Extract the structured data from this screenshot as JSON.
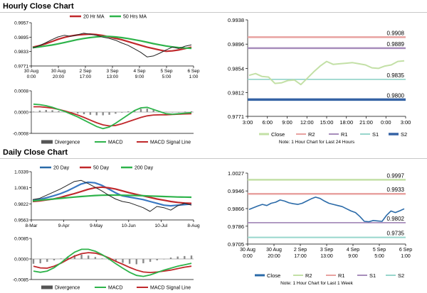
{
  "hourly_section_title": "Hourly Close Chart",
  "daily_section_title": "Daily Close Chart",
  "colors": {
    "ma20": "#c0282b",
    "ma50": "#2db34a",
    "price": "#222222",
    "macd": "#2db34a",
    "signal": "#c0282b",
    "hist": "#8c8c8c",
    "close_light": "#c3e0a6",
    "close_dark": "#2a6aa8",
    "r2": "#e8a2a0",
    "r1": "#a78dbb",
    "s1": "#98d6cc",
    "s2": "#3563a5",
    "r2_daily": "#c3e0a6"
  },
  "chart_data": [
    {
      "id": "hourly-price",
      "type": "line",
      "legend": [
        "20 Hr MA",
        "50 Hrs MA"
      ],
      "legend_placement": "top",
      "y_ticks": [
        "0.9957",
        "0.9895",
        "0.9833",
        "0.9771"
      ],
      "ylim": [
        0.9771,
        0.9957
      ],
      "x_ticks": [
        {
          "l1": "30 Aug",
          "l2": "0:00"
        },
        {
          "l1": "30 Aug",
          "l2": "20:00"
        },
        {
          "l1": "2 Sep",
          "l2": "17:00"
        },
        {
          "l1": "3 Sep",
          "l2": "13:00"
        },
        {
          "l1": "4 Sep",
          "l2": "9:00"
        },
        {
          "l1": "5 Sep",
          "l2": "5:00"
        },
        {
          "l1": "6 Sep",
          "l2": "1:00"
        }
      ],
      "series": [
        {
          "name": "20 Hr MA",
          "values": [
            0.9852,
            0.9858,
            0.9866,
            0.9876,
            0.9886,
            0.9894,
            0.99,
            0.9904,
            0.9906,
            0.9908,
            0.9906,
            0.9902,
            0.9896,
            0.989,
            0.9884,
            0.9876,
            0.9868,
            0.986,
            0.9852,
            0.9846,
            0.984,
            0.9834,
            0.9836,
            0.984,
            0.9846,
            0.9852
          ]
        },
        {
          "name": "50 Hrs MA",
          "values": [
            0.985,
            0.9853,
            0.9857,
            0.9861,
            0.9866,
            0.9872,
            0.9878,
            0.9884,
            0.9889,
            0.9893,
            0.9896,
            0.9898,
            0.9898,
            0.9896,
            0.9893,
            0.9889,
            0.9884,
            0.9879,
            0.9873,
            0.9867,
            0.9862,
            0.9857,
            0.9853,
            0.985,
            0.9848,
            0.9847
          ]
        },
        {
          "name": "Close",
          "values": [
            0.9848,
            0.9858,
            0.987,
            0.9884,
            0.9896,
            0.9903,
            0.9898,
            0.9905,
            0.9912,
            0.9908,
            0.9903,
            0.9895,
            0.989,
            0.9882,
            0.987,
            0.986,
            0.9845,
            0.983,
            0.981,
            0.9814,
            0.9826,
            0.984,
            0.9852,
            0.9846,
            0.9856,
            0.9862
          ]
        }
      ]
    },
    {
      "id": "hourly-macd",
      "type": "line",
      "y_ticks": [
        "0.0008",
        "0.0000",
        "-0.0008"
      ],
      "ylim": [
        -0.0008,
        0.0008
      ],
      "legend": [
        "Divergence",
        "MACD",
        "MACD Signal Line"
      ],
      "series": [
        {
          "name": "Divergence",
          "values": [
            2e-05,
            6e-05,
            8e-05,
            7e-05,
            4e-05,
            1e-05,
            -2e-05,
            -5e-05,
            -8e-05,
            -0.0001,
            -0.00012,
            -0.00012,
            -0.0001,
            -6e-05,
            -2e-05,
            3e-05,
            8e-05,
            0.00012,
            0.00013,
            8e-05,
            4e-05,
            1e-05,
            -1e-05,
            0.0,
            2e-05,
            3e-05
          ]
        },
        {
          "name": "MACD",
          "values": [
            0.0003,
            0.00028,
            0.00024,
            0.00018,
            0.0001,
            2e-05,
            -8e-05,
            -0.00018,
            -0.0003,
            -0.00042,
            -0.00054,
            -0.00062,
            -0.00056,
            -0.00042,
            -0.00026,
            -0.0001,
            6e-05,
            0.00016,
            0.00018,
            0.0001,
            2e-05,
            -6e-05,
            -8e-05,
            -6e-05,
            -4e-05,
            -2e-05
          ]
        },
        {
          "name": "MACD Signal Line",
          "values": [
            0.0002,
            0.0002,
            0.00018,
            0.00015,
            0.0001,
            4e-05,
            -3e-05,
            -0.00011,
            -0.0002,
            -0.0003,
            -0.0004,
            -0.00048,
            -0.00052,
            -0.0005,
            -0.00044,
            -0.00036,
            -0.00028,
            -0.0002,
            -0.00014,
            -0.00011,
            -0.0001,
            -0.0001,
            -9e-05,
            -8e-05,
            -7e-05,
            -6e-05
          ]
        }
      ]
    },
    {
      "id": "hourly-levels",
      "type": "line",
      "y_ticks": [
        "0.9938",
        "0.9896",
        "0.9854",
        "0.9812",
        "0.9771"
      ],
      "ylim": [
        0.9771,
        0.9938
      ],
      "x_ticks": [
        "3:00",
        "6:00",
        "9:00",
        "12:00",
        "15:00",
        "18:00",
        "21:00",
        "0:00",
        "3:00"
      ],
      "levels": [
        {
          "name": "R2",
          "value": 0.9908,
          "label": "0.9908"
        },
        {
          "name": "R1",
          "value": 0.9889,
          "label": "0.9889"
        },
        {
          "name": "S1",
          "value": 0.9835,
          "label": "0.9835"
        },
        {
          "name": "S2",
          "value": 0.98,
          "label": "0.9800"
        }
      ],
      "legend": [
        "Close",
        "R2",
        "R1",
        "S1",
        "S2"
      ],
      "note": "Note: 1 Hour Chart for Last 24 Hours",
      "series": [
        {
          "name": "Close",
          "values": [
            0.9842,
            0.9845,
            0.984,
            0.9839,
            0.9828,
            0.9829,
            0.9833,
            0.9834,
            0.9826,
            0.9837,
            0.9848,
            0.9858,
            0.9866,
            0.9861,
            0.9862,
            0.9863,
            0.9864,
            0.9862,
            0.986,
            0.9855,
            0.9854,
            0.9858,
            0.986,
            0.9866,
            0.9867
          ]
        }
      ]
    },
    {
      "id": "daily-price",
      "type": "line",
      "legend": [
        "20 Day",
        "50 Day",
        "200 Day"
      ],
      "legend_placement": "top",
      "y_ticks": [
        "1.0339",
        "1.0081",
        "0.9822",
        "0.9563"
      ],
      "ylim": [
        0.9563,
        1.0339
      ],
      "x_ticks": [
        "8-Mar",
        "9-Apr",
        "9-May",
        "10-Jun",
        "10-Jul",
        "8-Aug"
      ],
      "series": [
        {
          "name": "20 Day",
          "values": [
            0.988,
            0.9895,
            0.992,
            0.995,
            0.9985,
            1.003,
            1.0085,
            1.014,
            1.017,
            1.016,
            1.012,
            1.006,
            1.0,
            0.995,
            0.993,
            0.991,
            0.989,
            0.986,
            0.983,
            0.98,
            0.979,
            0.98,
            0.981,
            0.982
          ]
        },
        {
          "name": "50 Day",
          "values": [
            0.986,
            0.987,
            0.9885,
            0.99,
            0.9925,
            0.9955,
            0.9985,
            1.002,
            1.0055,
            1.008,
            1.009,
            1.008,
            1.006,
            1.003,
            1.0,
            0.9975,
            0.995,
            0.9925,
            0.99,
            0.988,
            0.986,
            0.9845,
            0.9835,
            0.983
          ]
        },
        {
          "name": "200 Day",
          "values": [
            0.987,
            0.988,
            0.989,
            0.99,
            0.991,
            0.992,
            0.993,
            0.994,
            0.9948,
            0.9955,
            0.996,
            0.9962,
            0.9962,
            0.996,
            0.9958,
            0.9955,
            0.9952,
            0.9948,
            0.9944,
            0.994,
            0.9936,
            0.9932,
            0.993,
            0.9928
          ]
        },
        {
          "name": "Close",
          "values": [
            0.989,
            0.991,
            0.996,
            1.001,
            1.006,
            1.012,
            1.018,
            1.02,
            1.015,
            1.009,
            1.003,
            0.996,
            0.99,
            0.986,
            0.984,
            0.98,
            0.976,
            0.97,
            0.978,
            0.976,
            0.972,
            0.979,
            0.983,
            0.98
          ]
        }
      ]
    },
    {
      "id": "daily-macd",
      "type": "line",
      "y_ticks": [
        "0.0085",
        "0.0000",
        "-0.0085"
      ],
      "ylim": [
        -0.0085,
        0.0085
      ],
      "legend": [
        "Divergence",
        "MACD",
        "MACD Signal Line"
      ],
      "series": [
        {
          "name": "Divergence",
          "values": [
            -0.002,
            -0.0018,
            -0.0012,
            -0.0006,
            0.0002,
            0.001,
            0.0016,
            0.0018,
            0.0014,
            0.0008,
            0.0002,
            -0.0004,
            -0.001,
            -0.0016,
            -0.002,
            -0.0022,
            -0.0018,
            -0.0012,
            -0.0006,
            0.0,
            0.0006,
            0.001,
            0.0012,
            0.0014
          ]
        },
        {
          "name": "MACD",
          "values": [
            -0.005,
            -0.0055,
            -0.005,
            -0.0036,
            -0.0016,
            0.0008,
            0.0028,
            0.004,
            0.004,
            0.0032,
            0.0018,
            0.0,
            -0.002,
            -0.0038,
            -0.0055,
            -0.0068,
            -0.0072,
            -0.0066,
            -0.0056,
            -0.0046,
            -0.0038,
            -0.003,
            -0.0024,
            -0.0018
          ]
        },
        {
          "name": "MACD Signal Line",
          "values": [
            -0.003,
            -0.0037,
            -0.0038,
            -0.003,
            -0.0018,
            -0.0002,
            0.0012,
            0.0022,
            0.0026,
            0.0024,
            0.0016,
            0.0004,
            -0.001,
            -0.0022,
            -0.0035,
            -0.0046,
            -0.0054,
            -0.0056,
            -0.0054,
            -0.005,
            -0.0046,
            -0.004,
            -0.0034,
            -0.003
          ]
        }
      ]
    },
    {
      "id": "daily-levels",
      "type": "line",
      "y_ticks": [
        "1.0027",
        "0.9946",
        "0.9866",
        "0.9786",
        "0.9705"
      ],
      "ylim": [
        0.9705,
        1.0027
      ],
      "x_ticks": [
        {
          "l1": "30 Aug",
          "l2": "0:00"
        },
        {
          "l1": "30 Aug",
          "l2": "20:00"
        },
        {
          "l1": "2 Sep",
          "l2": "17:00"
        },
        {
          "l1": "3 Sep",
          "l2": "13:00"
        },
        {
          "l1": "4 Sep",
          "l2": "9:00"
        },
        {
          "l1": "5 Sep",
          "l2": "5:00"
        },
        {
          "l1": "6 Sep",
          "l2": "1:00"
        }
      ],
      "levels": [
        {
          "name": "R2",
          "value": 0.9997,
          "label": "0.9997"
        },
        {
          "name": "R1",
          "value": 0.9933,
          "label": "0.9933"
        },
        {
          "name": "S1",
          "value": 0.9802,
          "label": "0.9802"
        },
        {
          "name": "S2",
          "value": 0.9735,
          "label": "0.9735"
        }
      ],
      "legend": [
        "Close",
        "R2",
        "R1",
        "S1",
        "S2"
      ],
      "note": "Note: 1 Hour Chart for Last 1 Week",
      "series": [
        {
          "name": "Close",
          "values": [
            0.9862,
            0.987,
            0.9878,
            0.9885,
            0.988,
            0.989,
            0.9895,
            0.9905,
            0.99,
            0.9892,
            0.9888,
            0.9885,
            0.989,
            0.99,
            0.991,
            0.9918,
            0.9912,
            0.99,
            0.989,
            0.9885,
            0.988,
            0.9875,
            0.9865,
            0.9855,
            0.9848,
            0.983,
            0.9808,
            0.9806,
            0.9812,
            0.981,
            0.9808,
            0.9835,
            0.9855,
            0.9848,
            0.9856,
            0.9865
          ]
        }
      ]
    }
  ]
}
